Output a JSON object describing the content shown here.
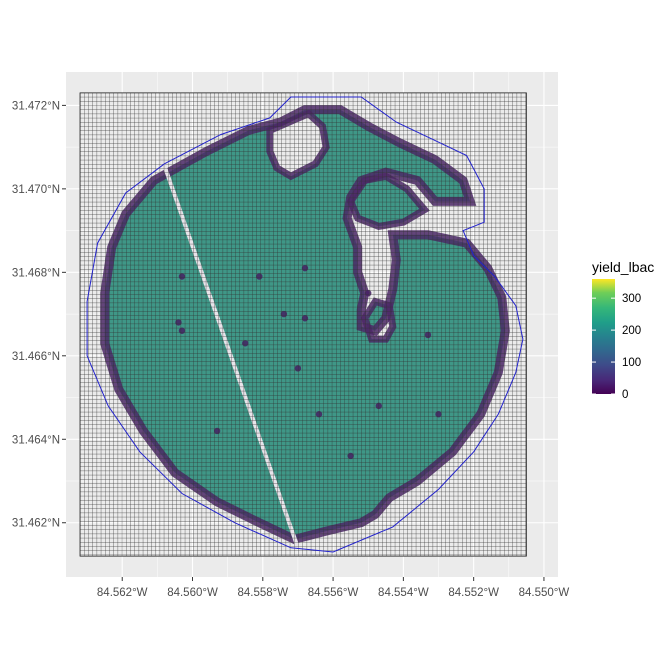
{
  "chart_data": {
    "type": "heatmap",
    "title": "",
    "x_ticks": [
      "84.562°W",
      "84.560°W",
      "84.558°W",
      "84.556°W",
      "84.554°W",
      "84.552°W",
      "84.550°W"
    ],
    "y_ticks": [
      "31.462°N",
      "31.464°N",
      "31.466°N",
      "31.468°N",
      "31.470°N",
      "31.472°N"
    ],
    "x_values": [
      -84.562,
      -84.56,
      -84.558,
      -84.556,
      -84.554,
      -84.552,
      -84.55
    ],
    "y_values": [
      31.462,
      31.464,
      31.466,
      31.468,
      31.47,
      31.472
    ],
    "xlim": [
      -84.5636,
      -84.5496
    ],
    "ylim": [
      31.4607,
      31.4728
    ],
    "legend": {
      "title": "yield_lbac",
      "ticks": [
        "300",
        "200",
        "100",
        "0"
      ],
      "tick_values": [
        300,
        200,
        100,
        0
      ],
      "range": [
        0,
        360
      ],
      "position": "right"
    },
    "colors": {
      "panel_background": "#ebebeb",
      "grid_line": "#ffffff",
      "grid_cell_border": "#333333",
      "boundary_line": "#2222cc",
      "low": "#440154",
      "mid": "#21908c",
      "high": "#fde725"
    },
    "grid_bounds": {
      "lon": [
        -84.5632,
        -84.5505
      ],
      "lat": [
        31.4612,
        31.4723
      ]
    },
    "field_boundary": [
      [
        -84.5608,
        31.4706
      ],
      [
        -84.5592,
        31.4713
      ],
      [
        -84.5578,
        31.4717
      ],
      [
        -84.5572,
        31.4722
      ],
      [
        -84.5562,
        31.4722
      ],
      [
        -84.5552,
        31.4722
      ],
      [
        -84.5542,
        31.4716
      ],
      [
        -84.5532,
        31.4712
      ],
      [
        -84.5522,
        31.4708
      ],
      [
        -84.5517,
        31.47
      ],
      [
        -84.5517,
        31.4692
      ],
      [
        -84.5523,
        31.469
      ],
      [
        -84.552,
        31.4684
      ],
      [
        -84.5514,
        31.4679
      ],
      [
        -84.5508,
        31.4672
      ],
      [
        -84.5506,
        31.4664
      ],
      [
        -84.5508,
        31.4656
      ],
      [
        -84.5513,
        31.4646
      ],
      [
        -84.552,
        31.4637
      ],
      [
        -84.553,
        31.4628
      ],
      [
        -84.5543,
        31.4619
      ],
      [
        -84.556,
        31.4613
      ],
      [
        -84.5572,
        31.4614
      ],
      [
        -84.5588,
        31.462
      ],
      [
        -84.5603,
        31.4627
      ],
      [
        -84.5615,
        31.4637
      ],
      [
        -84.5624,
        31.4648
      ],
      [
        -84.563,
        31.466
      ],
      [
        -84.563,
        31.4673
      ],
      [
        -84.5627,
        31.4687
      ],
      [
        -84.5619,
        31.4699
      ]
    ],
    "field": {
      "outer": [
        [
          -84.5611,
          31.4702
        ],
        [
          -84.5596,
          31.4709
        ],
        [
          -84.5584,
          31.4714
        ],
        [
          -84.5575,
          31.4716
        ],
        [
          -84.5568,
          31.4719
        ],
        [
          -84.5558,
          31.4719
        ],
        [
          -84.555,
          31.4715
        ],
        [
          -84.5541,
          31.4711
        ],
        [
          -84.5531,
          31.4707
        ],
        [
          -84.5523,
          31.4702
        ],
        [
          -84.5521,
          31.4697
        ],
        [
          -84.5531,
          31.4697
        ],
        [
          -84.5536,
          31.4702
        ],
        [
          -84.5545,
          31.4704
        ],
        [
          -84.5552,
          31.4702
        ],
        [
          -84.5555,
          31.4698
        ],
        [
          -84.5556,
          31.4693
        ],
        [
          -84.5553,
          31.4686
        ],
        [
          -84.5553,
          31.468
        ],
        [
          -84.5551,
          31.4675
        ],
        [
          -84.5552,
          31.4671
        ],
        [
          -84.5552,
          31.4667
        ],
        [
          -84.5548,
          31.4666
        ],
        [
          -84.5545,
          31.4669
        ],
        [
          -84.5543,
          31.4676
        ],
        [
          -84.5542,
          31.4683
        ],
        [
          -84.5543,
          31.4689
        ],
        [
          -84.5533,
          31.4689
        ],
        [
          -84.5522,
          31.4687
        ],
        [
          -84.5516,
          31.4681
        ],
        [
          -84.5512,
          31.4674
        ],
        [
          -84.5511,
          31.4666
        ],
        [
          -84.5513,
          31.4656
        ],
        [
          -84.5518,
          31.4646
        ],
        [
          -84.5526,
          31.4637
        ],
        [
          -84.5536,
          31.463
        ],
        [
          -84.5544,
          31.4626
        ],
        [
          -84.5548,
          31.4622
        ],
        [
          -84.5552,
          31.462
        ],
        [
          -84.5562,
          31.4618
        ],
        [
          -84.5571,
          31.4616
        ],
        [
          -84.5581,
          31.462
        ],
        [
          -84.5593,
          31.4625
        ],
        [
          -84.5605,
          31.4632
        ],
        [
          -84.5614,
          31.4642
        ],
        [
          -84.5621,
          31.4652
        ],
        [
          -84.5625,
          31.4663
        ],
        [
          -84.5625,
          31.4675
        ],
        [
          -84.5623,
          31.4686
        ],
        [
          -84.5619,
          31.4694
        ]
      ],
      "gaps": [
        [
          [
            -84.5578,
            31.4714
          ],
          [
            -84.5567,
            31.4718
          ],
          [
            -84.5563,
            31.4715
          ],
          [
            -84.5562,
            31.471
          ],
          [
            -84.5565,
            31.4706
          ],
          [
            -84.5572,
            31.4703
          ],
          [
            -84.5576,
            31.4705
          ],
          [
            -84.5578,
            31.4709
          ]
        ],
        [
          [
            -84.5553,
            31.4693
          ],
          [
            -84.5555,
            31.4697
          ],
          [
            -84.5551,
            31.4702
          ],
          [
            -84.5545,
            31.4703
          ],
          [
            -84.5539,
            31.47
          ],
          [
            -84.5534,
            31.4695
          ],
          [
            -84.554,
            31.4692
          ],
          [
            -84.5547,
            31.4691
          ]
        ],
        [
          [
            -84.5551,
            31.4669
          ],
          [
            -84.5549,
            31.4664
          ],
          [
            -84.5545,
            31.4664
          ],
          [
            -84.5543,
            31.4667
          ],
          [
            -84.5544,
            31.4672
          ],
          [
            -84.5548,
            31.4673
          ]
        ]
      ]
    }
  }
}
